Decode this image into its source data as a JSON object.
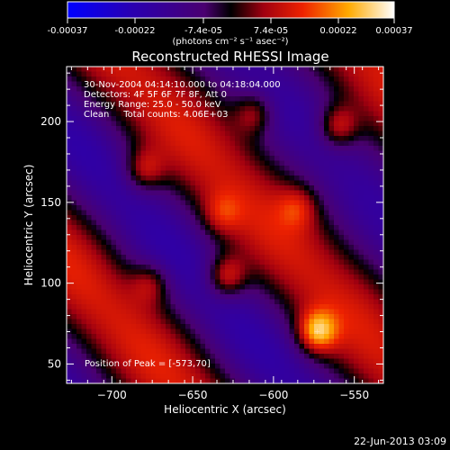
{
  "colorbar": {
    "tick_labels": [
      "-0.00037",
      "-0.00022",
      "-7.4e-05",
      "7.4e-05",
      "0.00022",
      "0.00037"
    ],
    "range": [
      -0.00037,
      0.00037
    ],
    "unit_label": "(photons cm⁻² s⁻¹ asec⁻²)"
  },
  "chart_data": {
    "type": "heatmap",
    "title": "Reconstructed RHESSI Image",
    "xlabel": "Heliocentric X (arcsec)",
    "ylabel": "Heliocentric Y (arcsec)",
    "xlim": [
      -728,
      -532
    ],
    "ylim": [
      38,
      234
    ],
    "x_ticks": [
      -700,
      -650,
      -600,
      -550
    ],
    "y_ticks": [
      50,
      100,
      150,
      200
    ],
    "x_tick_labels": [
      "−700",
      "−650",
      "−600",
      "−550"
    ],
    "y_tick_labels": [
      "50",
      "100",
      "150",
      "200"
    ],
    "info_lines": [
      "30-Nov-2004 04:14:10.000 to 04:18:04.000",
      "Detectors: 4F 5F 6F 7F 8F, Att 0",
      "Energy Range: 25.0 - 50.0 keV",
      "Clean     Total counts: 4.06E+03"
    ],
    "peak_label": "Position of Peak = [-573,70]",
    "peak": [
      -573,
      70
    ],
    "bright_spots": [
      {
        "x": -573,
        "y": 70,
        "v": 1.0
      },
      {
        "x": -629,
        "y": 104,
        "v": 0.8
      },
      {
        "x": -560,
        "y": 197,
        "v": 0.72
      },
      {
        "x": -680,
        "y": 170,
        "v": 0.62
      },
      {
        "x": -612,
        "y": 205,
        "v": 0.6
      },
      {
        "x": -676,
        "y": 100,
        "v": 0.5
      },
      {
        "x": -585,
        "y": 147,
        "v": 0.45
      },
      {
        "x": -632,
        "y": 143,
        "v": 0.42
      }
    ]
  },
  "footer_date": "22-Jun-2013 03:09"
}
